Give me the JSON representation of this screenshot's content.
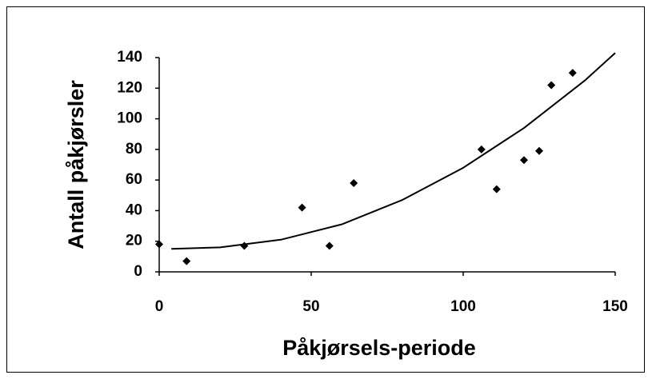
{
  "chart_data": {
    "type": "scatter",
    "xlabel": "Påkjørsels-periode",
    "ylabel": "Antall påkjørsler",
    "xlim": [
      0,
      150
    ],
    "xticks": [
      0,
      50,
      100,
      150
    ],
    "ylim": [
      0,
      140
    ],
    "yticks": [
      0,
      20,
      40,
      60,
      80,
      100,
      120,
      140
    ],
    "series": [
      {
        "type": "scatter",
        "color": "#000000",
        "x": [
          0,
          9,
          28,
          47,
          56,
          64,
          106,
          111,
          120,
          125,
          129,
          136
        ],
        "values": [
          18,
          7,
          17,
          42,
          17,
          58,
          80,
          54,
          73,
          79,
          122,
          130
        ]
      },
      {
        "type": "line",
        "color": "#000000",
        "x": [
          4,
          20,
          40,
          60,
          80,
          100,
          120,
          140,
          150
        ],
        "values": [
          15,
          16,
          21,
          31,
          47,
          68,
          94,
          125,
          143
        ]
      }
    ]
  }
}
